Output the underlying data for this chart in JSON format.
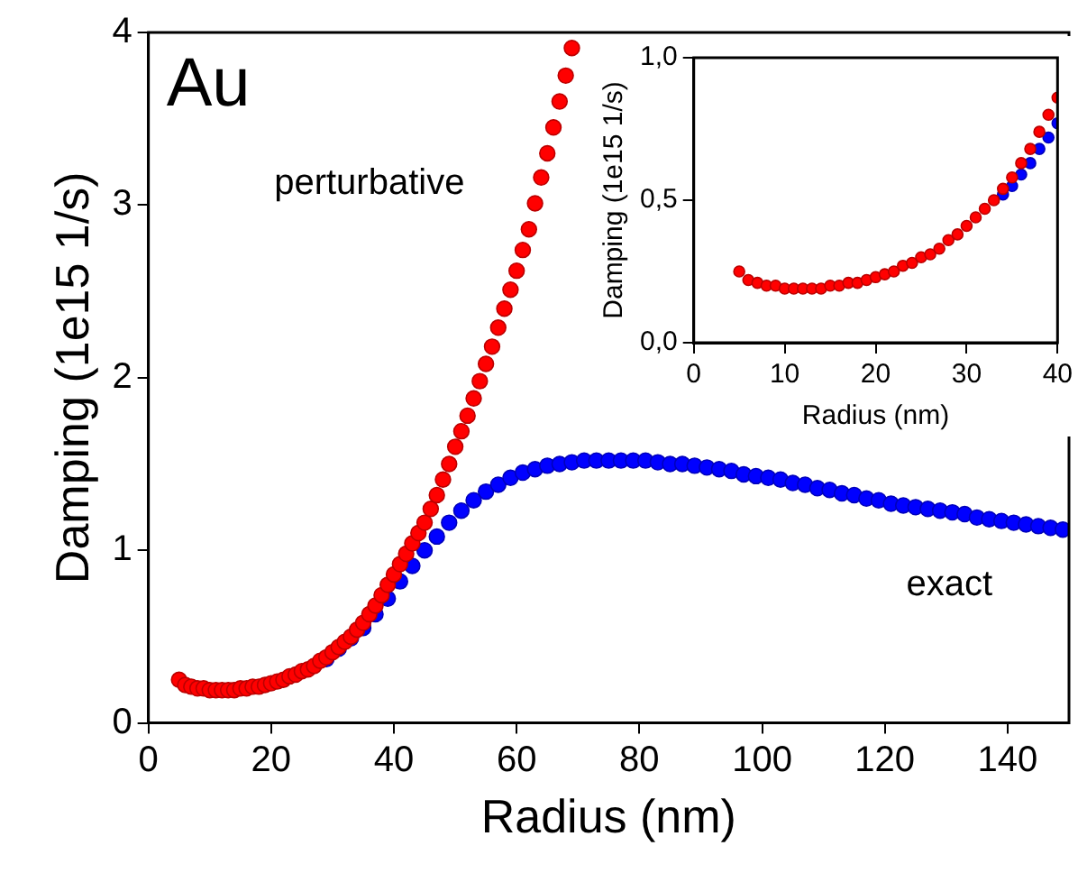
{
  "chart_data": [
    {
      "type": "scatter",
      "xlabel": "Radius (nm)",
      "ylabel": "Damping (1e15 1/s)",
      "annotations": [
        "Au"
      ],
      "xlim": [
        0,
        150
      ],
      "xticks": [
        0,
        20,
        40,
        60,
        80,
        100,
        120,
        140
      ],
      "ylim": [
        0,
        4
      ],
      "yticks": [
        0,
        1,
        2,
        3,
        4
      ],
      "grid": false,
      "legend": false,
      "marker": "circle",
      "series": [
        {
          "name": "perturbative",
          "color": "#ff0000",
          "x": [
            5,
            6,
            7,
            8,
            9,
            10,
            11,
            12,
            13,
            14,
            15,
            16,
            17,
            18,
            19,
            20,
            21,
            22,
            23,
            24,
            25,
            26,
            27,
            28,
            29,
            30,
            31,
            32,
            33,
            34,
            35,
            36,
            37,
            38,
            39,
            40,
            41,
            42,
            43,
            44,
            45,
            46,
            47,
            48,
            49,
            50,
            51,
            52,
            53,
            54,
            55,
            56,
            57,
            58,
            59,
            60,
            61,
            62,
            63,
            64,
            65,
            66,
            67,
            68,
            69
          ],
          "values": [
            0.25,
            0.22,
            0.21,
            0.2,
            0.2,
            0.19,
            0.19,
            0.19,
            0.19,
            0.19,
            0.2,
            0.2,
            0.21,
            0.21,
            0.22,
            0.23,
            0.24,
            0.25,
            0.27,
            0.28,
            0.3,
            0.31,
            0.33,
            0.36,
            0.38,
            0.41,
            0.44,
            0.47,
            0.5,
            0.54,
            0.58,
            0.63,
            0.68,
            0.74,
            0.8,
            0.86,
            0.92,
            0.98,
            1.04,
            1.1,
            1.16,
            1.24,
            1.32,
            1.41,
            1.5,
            1.6,
            1.69,
            1.78,
            1.88,
            1.98,
            2.08,
            2.18,
            2.29,
            2.4,
            2.51,
            2.62,
            2.74,
            2.86,
            3.01,
            3.16,
            3.3,
            3.45,
            3.6,
            3.75,
            3.91
          ]
        },
        {
          "name": "exact",
          "color": "#0000ff",
          "x": [
            29,
            31,
            33,
            35,
            37,
            39,
            41,
            43,
            45,
            47,
            49,
            51,
            53,
            55,
            57,
            59,
            61,
            63,
            65,
            67,
            69,
            71,
            73,
            75,
            77,
            79,
            81,
            83,
            85,
            87,
            89,
            91,
            93,
            95,
            97,
            99,
            101,
            103,
            105,
            107,
            109,
            111,
            113,
            115,
            117,
            119,
            121,
            123,
            125,
            127,
            129,
            131,
            133,
            135,
            137,
            139,
            141,
            143,
            145,
            147,
            149
          ],
          "values": [
            0.37,
            0.43,
            0.49,
            0.55,
            0.63,
            0.72,
            0.82,
            0.91,
            1.0,
            1.08,
            1.16,
            1.23,
            1.29,
            1.34,
            1.38,
            1.42,
            1.45,
            1.47,
            1.49,
            1.5,
            1.51,
            1.52,
            1.52,
            1.52,
            1.52,
            1.52,
            1.52,
            1.51,
            1.5,
            1.5,
            1.49,
            1.48,
            1.47,
            1.46,
            1.44,
            1.43,
            1.42,
            1.41,
            1.39,
            1.38,
            1.36,
            1.35,
            1.33,
            1.32,
            1.3,
            1.29,
            1.27,
            1.26,
            1.25,
            1.24,
            1.23,
            1.22,
            1.21,
            1.19,
            1.18,
            1.17,
            1.16,
            1.15,
            1.14,
            1.13,
            1.12
          ]
        }
      ]
    },
    {
      "type": "scatter",
      "xlabel": "Radius (nm)",
      "ylabel": "Damping (1e15 1/s)",
      "xlim": [
        0,
        40
      ],
      "xticks": [
        0,
        10,
        20,
        30,
        40
      ],
      "ylim": [
        0,
        1
      ],
      "yticks": [
        {
          "value": 0,
          "label": "0,0"
        },
        {
          "value": 0.5,
          "label": "0,5"
        },
        {
          "value": 1,
          "label": "1,0"
        }
      ],
      "grid": false,
      "legend": false,
      "marker": "circle",
      "series": [
        {
          "color": "#ff0000",
          "x": [
            5,
            6,
            7,
            8,
            9,
            10,
            11,
            12,
            13,
            14,
            15,
            16,
            17,
            18,
            19,
            20,
            21,
            22,
            23,
            24,
            25,
            26,
            27,
            28,
            29,
            30,
            31,
            32,
            33,
            34,
            35,
            36,
            37,
            38,
            39,
            40
          ],
          "values": [
            0.25,
            0.22,
            0.21,
            0.2,
            0.2,
            0.19,
            0.19,
            0.19,
            0.19,
            0.19,
            0.2,
            0.2,
            0.21,
            0.21,
            0.22,
            0.23,
            0.24,
            0.25,
            0.27,
            0.28,
            0.3,
            0.31,
            0.33,
            0.36,
            0.38,
            0.41,
            0.44,
            0.47,
            0.5,
            0.54,
            0.58,
            0.63,
            0.68,
            0.74,
            0.8,
            0.86
          ]
        },
        {
          "color": "#0000ff",
          "x": [
            34,
            35,
            36,
            37,
            38,
            39,
            40
          ],
          "values": [
            0.52,
            0.55,
            0.59,
            0.63,
            0.68,
            0.72,
            0.77
          ]
        }
      ]
    }
  ]
}
